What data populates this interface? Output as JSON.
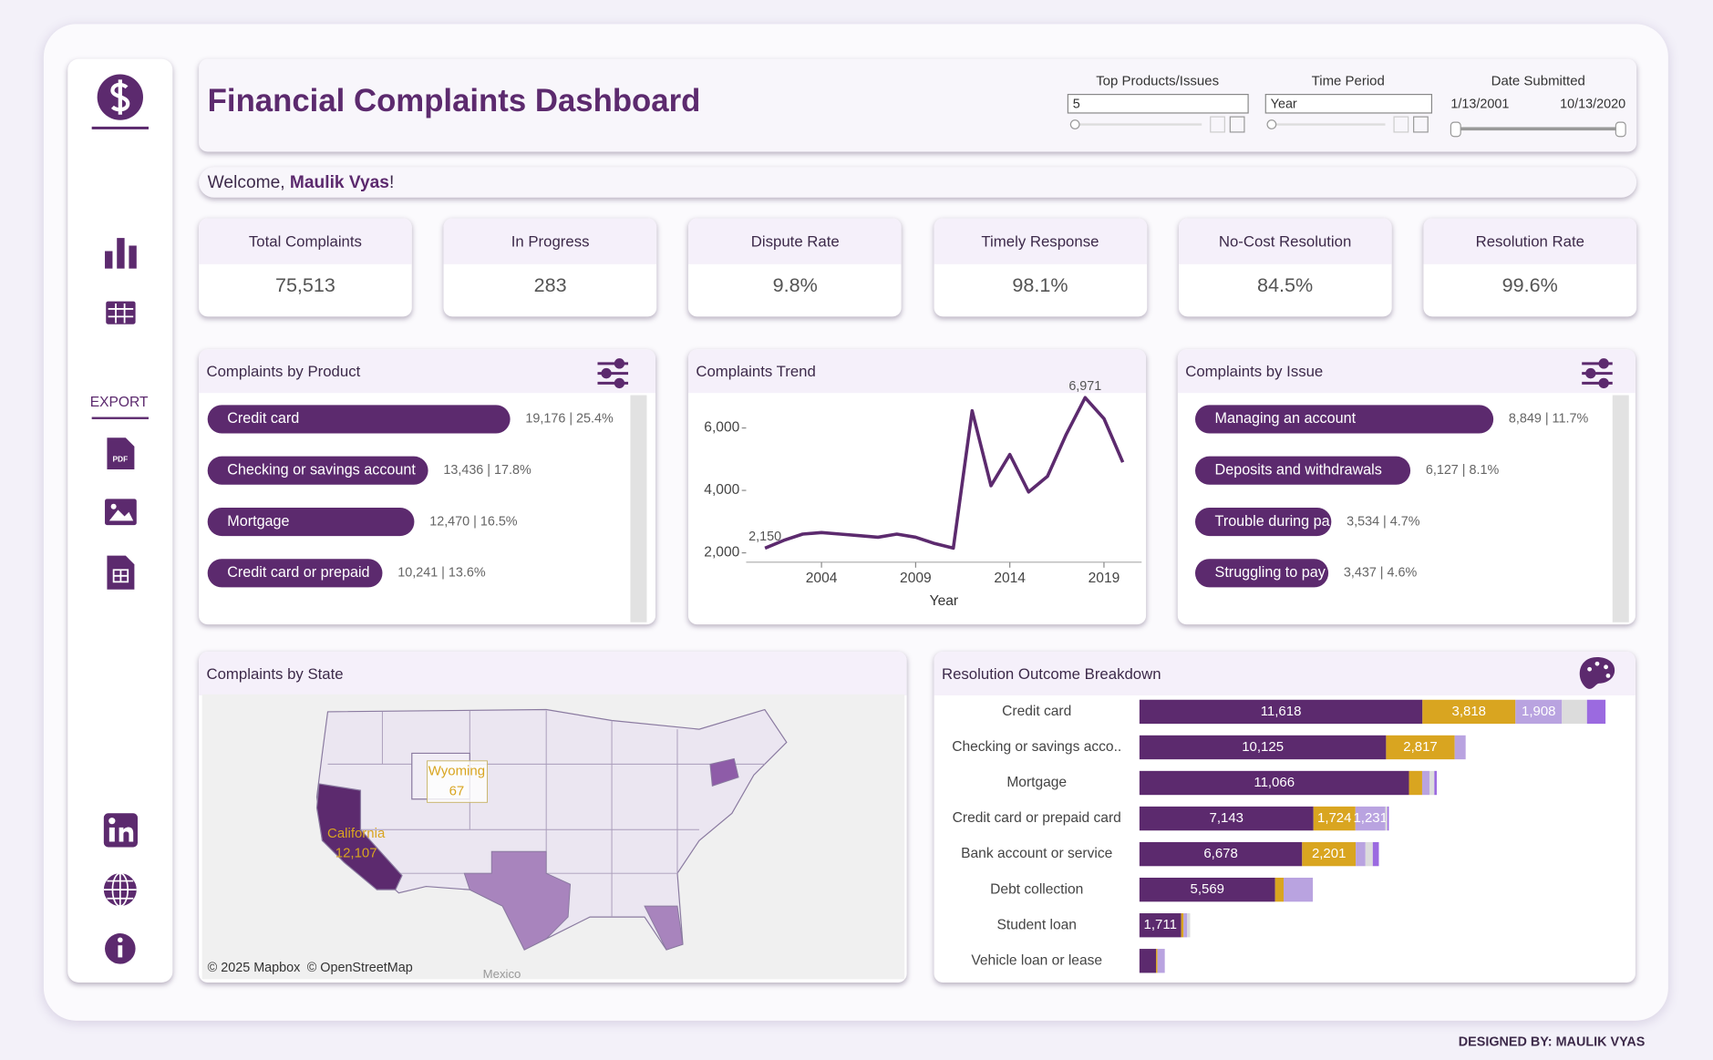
{
  "header": {
    "title": "Financial Complaints Dashboard",
    "filters": [
      {
        "label": "Top Products/Issues",
        "value": "5"
      },
      {
        "label": "Time Period",
        "value": "Year"
      },
      {
        "label": "Date Submitted",
        "start": "1/13/2001",
        "end": "10/13/2020"
      }
    ]
  },
  "welcome": {
    "greeting": "Welcome,",
    "name": "Maulik Vyas",
    "suffix": "!"
  },
  "sidebar": {
    "export": "EXPORT",
    "pdf": "PDF"
  },
  "kpis": [
    {
      "label": "Total Complaints",
      "value": "75,513"
    },
    {
      "label": "In Progress",
      "value": "283"
    },
    {
      "label": "Dispute Rate",
      "value": "9.8%"
    },
    {
      "label": "Timely Response",
      "value": "98.1%"
    },
    {
      "label": "No-Cost Resolution",
      "value": "84.5%"
    },
    {
      "label": "Resolution Rate",
      "value": "99.6%"
    }
  ],
  "chart_data": [
    {
      "type": "bar",
      "orientation": "horizontal",
      "title": "Complaints by Product",
      "color": "#5c2a6e",
      "categories": [
        "Credit card",
        "Checking or savings account",
        "Mortgage",
        "Credit card or prepaid"
      ],
      "values": [
        19176,
        13436,
        12470,
        10241
      ],
      "value_labels": [
        "19,176 | 25.4%",
        "13,436 | 17.8%",
        "12,470 | 16.5%",
        "10,241 | 13.6%"
      ]
    },
    {
      "type": "line",
      "title": "Complaints Trend",
      "x_label": "Year",
      "color": "#5c2a6e",
      "x": [
        2001,
        2002,
        2003,
        2004,
        2005,
        2006,
        2007,
        2008,
        2009,
        2010,
        2011,
        2012,
        2013,
        2014,
        2015,
        2016,
        2017,
        2018,
        2019,
        2020
      ],
      "values": [
        2150,
        2400,
        2600,
        2650,
        2600,
        2550,
        2500,
        2600,
        2500,
        2300,
        2150,
        6550,
        4150,
        5150,
        3950,
        4450,
        5800,
        6971,
        6300,
        4900
      ],
      "value_labels": [
        "2,150",
        null,
        null,
        null,
        null,
        null,
        null,
        null,
        null,
        null,
        null,
        null,
        null,
        null,
        null,
        null,
        null,
        "6,971",
        null,
        null
      ],
      "xlim": [
        2000,
        2021
      ],
      "xticks": [
        2004,
        2009,
        2014,
        2019
      ],
      "ylim": [
        1700,
        7050
      ],
      "yticks": [
        {
          "value": 2000,
          "label": "2,000"
        },
        {
          "value": 4000,
          "label": "4,000"
        },
        {
          "value": 6000,
          "label": "6,000"
        }
      ]
    },
    {
      "type": "bar",
      "orientation": "horizontal",
      "title": "Complaints by Issue",
      "color": "#5c2a6e",
      "categories": [
        "Managing an account",
        "Deposits and withdrawals",
        "Trouble during pa",
        "Struggling to pay"
      ],
      "values": [
        8849,
        6127,
        3534,
        3437
      ],
      "value_labels": [
        "8,849 | 11.7%",
        "6,127 | 8.1%",
        "3,534 | 4.7%",
        "3,437 | 4.6%"
      ]
    },
    {
      "type": "map",
      "title": "Complaints by State",
      "regions": [
        {
          "name": "California",
          "value": 12107,
          "value_label": "12,107",
          "color": "#5c2a6e"
        },
        {
          "name": "Wyoming",
          "value": 67,
          "value_label": "67",
          "color": "#f1edf6"
        }
      ],
      "annotations": [
        "© 2025 Mapbox",
        "© OpenStreetMap",
        "Mexico"
      ]
    },
    {
      "type": "bar",
      "orientation": "horizontal",
      "stacked": true,
      "title": "Resolution Outcome Breakdown",
      "categories": [
        "Credit card",
        "Checking or savings acco..",
        "Mortgage",
        "Credit card or prepaid card",
        "Bank account or service",
        "Debt collection",
        "Student loan",
        "Vehicle loan or lease"
      ],
      "xlim": [
        0,
        19600
      ],
      "series": [
        {
          "color": "#5c2a6e",
          "values": [
            11618,
            10125,
            11066,
            7143,
            6678,
            5569,
            1711,
            680
          ],
          "value_labels": [
            "11,618",
            "10,125",
            "11,066",
            "7,143",
            "6,678",
            "5,569",
            "1,711",
            null
          ]
        },
        {
          "color": "#d9a520",
          "values": [
            3818,
            2817,
            540,
            1724,
            2201,
            350,
            100,
            60
          ],
          "value_labels": [
            "3,818",
            "2,817",
            null,
            "1,724",
            "2,201",
            null,
            null,
            null
          ]
        },
        {
          "color": "#b9a3e0",
          "values": [
            1908,
            450,
            300,
            1231,
            400,
            1200,
            150,
            300
          ],
          "value_labels": [
            "1,908",
            null,
            null,
            "1,231",
            null,
            null,
            null,
            null
          ]
        },
        {
          "color": "#dcdcdc",
          "values": [
            1030,
            0,
            200,
            80,
            300,
            0,
            120,
            0
          ],
          "value_labels": [
            null,
            null,
            null,
            null,
            null,
            null,
            null,
            null
          ]
        },
        {
          "color": "#9b6ae0",
          "values": [
            760,
            0,
            100,
            60,
            250,
            0,
            0,
            0
          ],
          "value_labels": [
            null,
            null,
            null,
            null,
            null,
            null,
            null,
            null
          ]
        }
      ]
    }
  ],
  "footer": "DESIGNED BY: MAULIK VYAS"
}
